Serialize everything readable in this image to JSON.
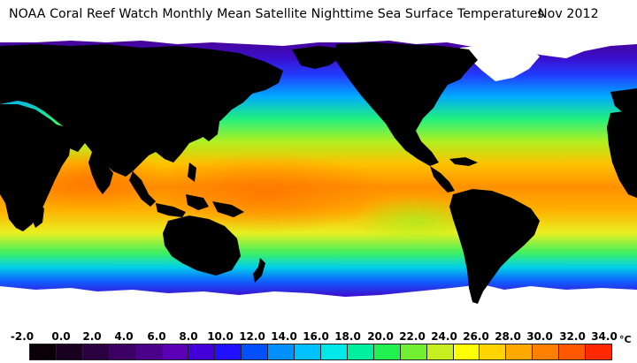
{
  "title": {
    "text": "NOAA Coral Reef Watch Monthly Mean Satellite Nighttime Sea Surface Temperatures",
    "date": "Nov 2012"
  },
  "colorbar": {
    "ticks": [
      "-2.0",
      "0.0",
      "2.0",
      "4.0",
      "6.0",
      "8.0",
      "10.0",
      "12.0",
      "14.0",
      "16.0",
      "18.0",
      "20.0",
      "22.0",
      "24.0",
      "26.0",
      "28.0",
      "30.0",
      "32.0",
      "34.0"
    ],
    "unit": "°C",
    "colors": [
      "#0a0008",
      "#1a0020",
      "#2a0040",
      "#3c0064",
      "#4a0088",
      "#5c00b8",
      "#4400d8",
      "#2010ff",
      "#0050ff",
      "#0090ff",
      "#00c0ff",
      "#00e8e8",
      "#00f0a0",
      "#20f050",
      "#70f030",
      "#c8f020",
      "#ffff00",
      "#ffd400",
      "#ffa800",
      "#ff8000",
      "#ff5800",
      "#ff2800"
    ]
  },
  "map": {
    "land_color": "#000000",
    "ice_color": "#ffffff",
    "ocean_gradient_colors": [
      "#4a0090",
      "#2030ff",
      "#00b8ff",
      "#20f060",
      "#f0f020",
      "#ffb000",
      "#ff8a00"
    ]
  }
}
